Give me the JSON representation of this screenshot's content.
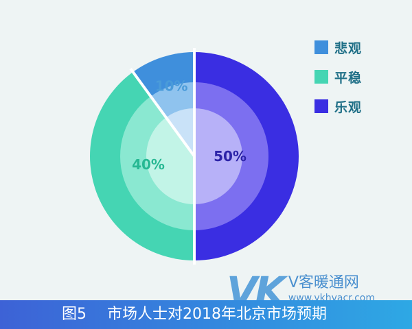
{
  "chart_data": {
    "type": "pie",
    "categories": [
      "悲观",
      "平稳",
      "乐观"
    ],
    "values": [
      10,
      40,
      50
    ],
    "labels": [
      "10%",
      "40%",
      "50%"
    ],
    "colors": {
      "outer": [
        "#3f8fdc",
        "#45d5b3",
        "#3a2ee2"
      ],
      "middle": [
        "#8fc3ee",
        "#8ae8d1",
        "#7c6ff0"
      ],
      "inner": [
        "#c9e2f8",
        "#c2f4e7",
        "#b7b1f8"
      ],
      "label": [
        "#4a9bd9",
        "#27b893",
        "#2c23a8"
      ]
    },
    "legend_position": "top-right"
  },
  "legend": [
    {
      "label": "悲观",
      "color": "#3f8fdc"
    },
    {
      "label": "平稳",
      "color": "#45d5b3"
    },
    {
      "label": "乐观",
      "color": "#3a2ee2"
    }
  ],
  "caption": {
    "figure": "图5",
    "title": "市场人士对2018年北京市场预期"
  },
  "watermark": {
    "logo": "VK",
    "name": "V客暖通网",
    "url": "www.vkhvacr.com"
  }
}
